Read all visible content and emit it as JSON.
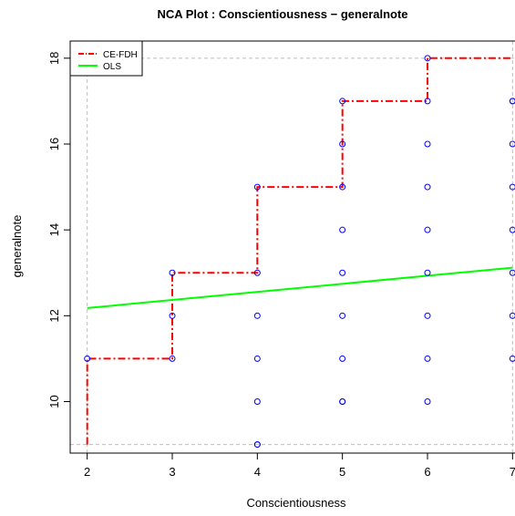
{
  "chart_data": {
    "type": "scatter",
    "title": "NCA Plot : Conscientiousness − generalnote",
    "xlabel": "Conscientiousness",
    "ylabel": "generalnote",
    "xlim": [
      1.8,
      7.05
    ],
    "ylim": [
      8.8,
      18.4
    ],
    "xticks": [
      2,
      3,
      4,
      5,
      6,
      7
    ],
    "yticks": [
      10,
      12,
      14,
      16,
      18
    ],
    "grid": false,
    "legend_position": "top-left",
    "scope_box": {
      "x": [
        2,
        7
      ],
      "y": [
        9,
        18
      ]
    },
    "points": {
      "color": "#0000ff",
      "x": [
        2,
        3,
        3,
        3,
        4,
        4,
        4,
        4,
        4,
        4,
        4,
        5,
        5,
        5,
        5,
        5,
        5,
        5,
        5,
        5,
        6,
        6,
        6,
        6,
        6,
        6,
        6,
        6,
        6,
        7,
        7,
        7,
        7,
        7,
        7,
        7,
        7
      ],
      "y": [
        11,
        11,
        12,
        13,
        9,
        10,
        11,
        12,
        13,
        15,
        9,
        10,
        11,
        12,
        13,
        14,
        15,
        16,
        17,
        10,
        11,
        12,
        13,
        14,
        15,
        16,
        17,
        18,
        10,
        11,
        12,
        13,
        14,
        15,
        16,
        17,
        17
      ]
    },
    "series": [
      {
        "name": "CE-FDH",
        "type": "step",
        "color": "#ff0000",
        "x": [
          2,
          2,
          3,
          3,
          4,
          4,
          5,
          5,
          6,
          6,
          7
        ],
        "y": [
          9,
          11,
          11,
          13,
          13,
          15,
          15,
          17,
          17,
          18,
          18
        ]
      },
      {
        "name": "OLS",
        "type": "line",
        "color": "#00ff00",
        "x": [
          2,
          7
        ],
        "y": [
          12.18,
          13.12
        ]
      }
    ]
  }
}
